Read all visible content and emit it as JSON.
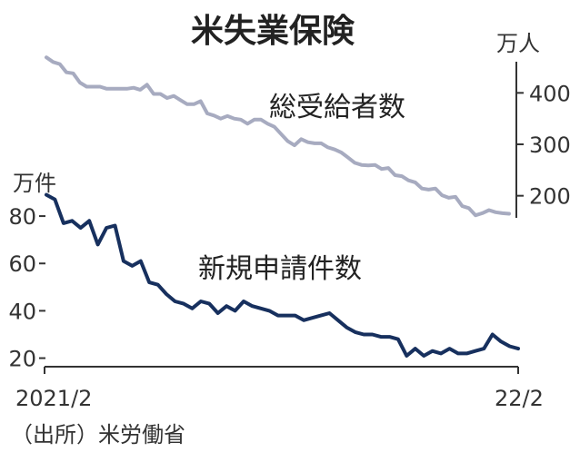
{
  "chart_data": {
    "type": "line",
    "title": "米失業保険",
    "source": "（出所）米労働省",
    "x_start_label": "2021/2",
    "x_end_label": "22/2",
    "series": [
      {
        "name": "総受給者数",
        "unit": "万人",
        "axis": "right",
        "ylim": [
          150,
          480
        ],
        "ticks": [
          400,
          300,
          200
        ],
        "color": "#a7abc0",
        "values": [
          469,
          460,
          456,
          440,
          438,
          420,
          412,
          412,
          412,
          408,
          408,
          408,
          408,
          410,
          406,
          416,
          398,
          398,
          390,
          394,
          386,
          378,
          378,
          384,
          360,
          356,
          350,
          355,
          350,
          348,
          340,
          348,
          348,
          340,
          334,
          320,
          306,
          298,
          310,
          304,
          302,
          302,
          294,
          290,
          284,
          274,
          264,
          260,
          259,
          260,
          252,
          254,
          240,
          238,
          230,
          226,
          214,
          212,
          214,
          201,
          196,
          198,
          180,
          176,
          162,
          166,
          172,
          168,
          166,
          165
        ]
      },
      {
        "name": "新規申請件数",
        "unit": "万件",
        "axis": "left",
        "ylim": [
          16,
          90
        ],
        "ticks": [
          80,
          60,
          40,
          20
        ],
        "color": "#17305e",
        "values": [
          89,
          87,
          77,
          78,
          75,
          78,
          68,
          75,
          76,
          61,
          59,
          61,
          52,
          51,
          47,
          44,
          43,
          41,
          44,
          43,
          39,
          42,
          40,
          44,
          42,
          41,
          40,
          38,
          38,
          38,
          36,
          37,
          38,
          39,
          36,
          33,
          31,
          30,
          30,
          29,
          29,
          28,
          21,
          24,
          21,
          23,
          22,
          24,
          22,
          22,
          23,
          24,
          30,
          27,
          25,
          24
        ]
      }
    ]
  },
  "colors": {
    "text": "#222222",
    "axis": "#333333"
  }
}
